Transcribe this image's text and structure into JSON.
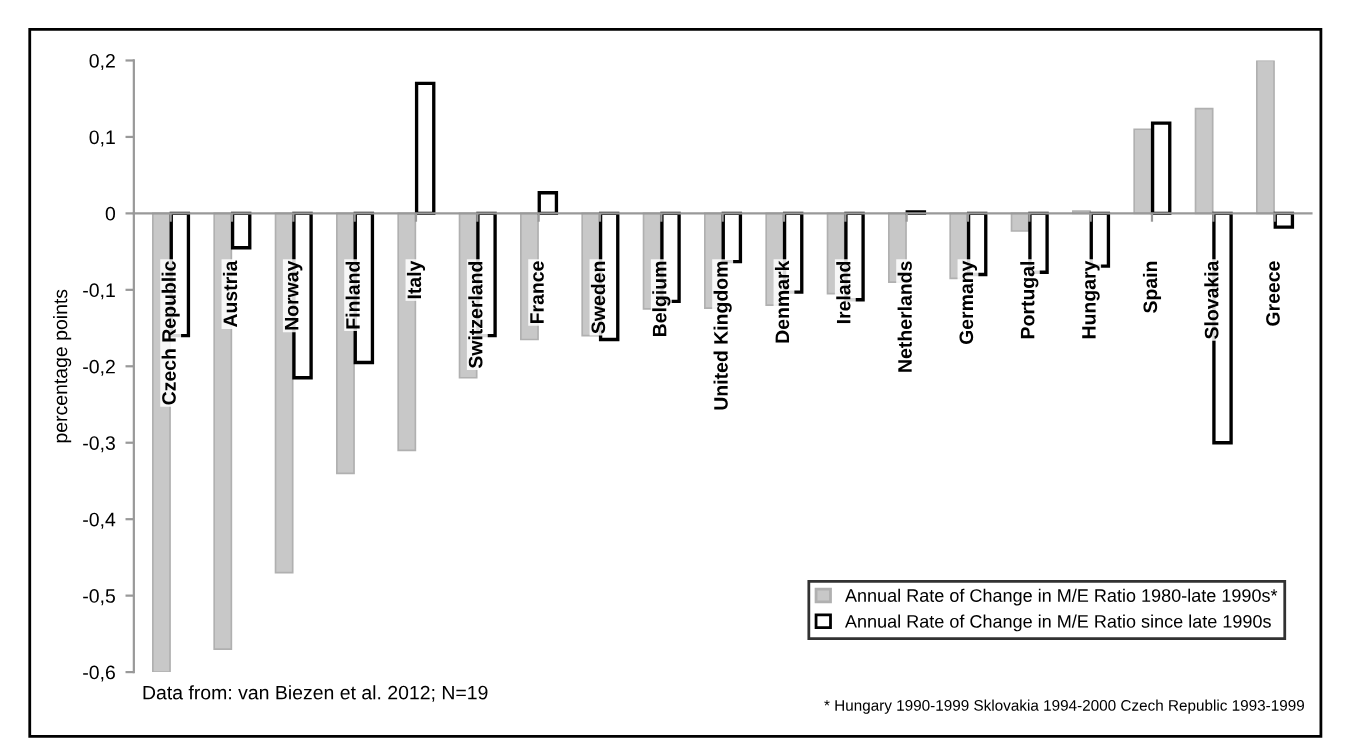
{
  "chart_data": {
    "type": "bar",
    "categories": [
      "Czech Republic",
      "Austria",
      "Norway",
      "Finland",
      "Italy",
      "Switzerland",
      "France",
      "Sweden",
      "Belgium",
      "United Kingdom",
      "Denmark",
      "Ireland",
      "Netherlands",
      "Germany",
      "Portugal",
      "Hungary",
      "Spain",
      "Slovakia",
      "Greece"
    ],
    "series": [
      {
        "name": "Annual Rate of Change in M/E Ratio 1980-late 1990s*",
        "color": "#c8c8c8",
        "values": [
          -0.6,
          -0.57,
          -0.47,
          -0.34,
          -0.31,
          -0.215,
          -0.165,
          -0.16,
          -0.125,
          -0.124,
          -0.12,
          -0.105,
          -0.09,
          -0.085,
          -0.023,
          0.003,
          0.11,
          0.137,
          0.2
        ]
      },
      {
        "name": "Annual Rate of Change in M/E Ratio since late 1990s",
        "color": "#ffffff",
        "values": [
          -0.16,
          -0.045,
          -0.215,
          -0.195,
          0.17,
          -0.16,
          0.027,
          -0.165,
          -0.115,
          -0.063,
          -0.103,
          -0.113,
          0.002,
          -0.08,
          -0.077,
          -0.069,
          0.118,
          -0.3,
          -0.018
        ]
      }
    ],
    "ylabel": "percentage points",
    "ylim": [
      -0.6,
      0.2
    ],
    "yticks": [
      {
        "value": -0.6,
        "label": "-0,6"
      },
      {
        "value": -0.5,
        "label": "-0,5"
      },
      {
        "value": -0.4,
        "label": "-0,4"
      },
      {
        "value": -0.3,
        "label": "-0,3"
      },
      {
        "value": -0.2,
        "label": "-0,2"
      },
      {
        "value": -0.1,
        "label": "-0,1"
      },
      0,
      {
        "value": 0.1,
        "label": "0,1"
      },
      {
        "value": 0.2,
        "label": "0,2"
      }
    ],
    "legend": "bottom right",
    "annotations": [
      "Data from: van Biezen et al. 2012; N=19",
      "* Hungary 1990-1999 Sklovakia 1994-2000 Czech Republic 1993-1999"
    ]
  }
}
